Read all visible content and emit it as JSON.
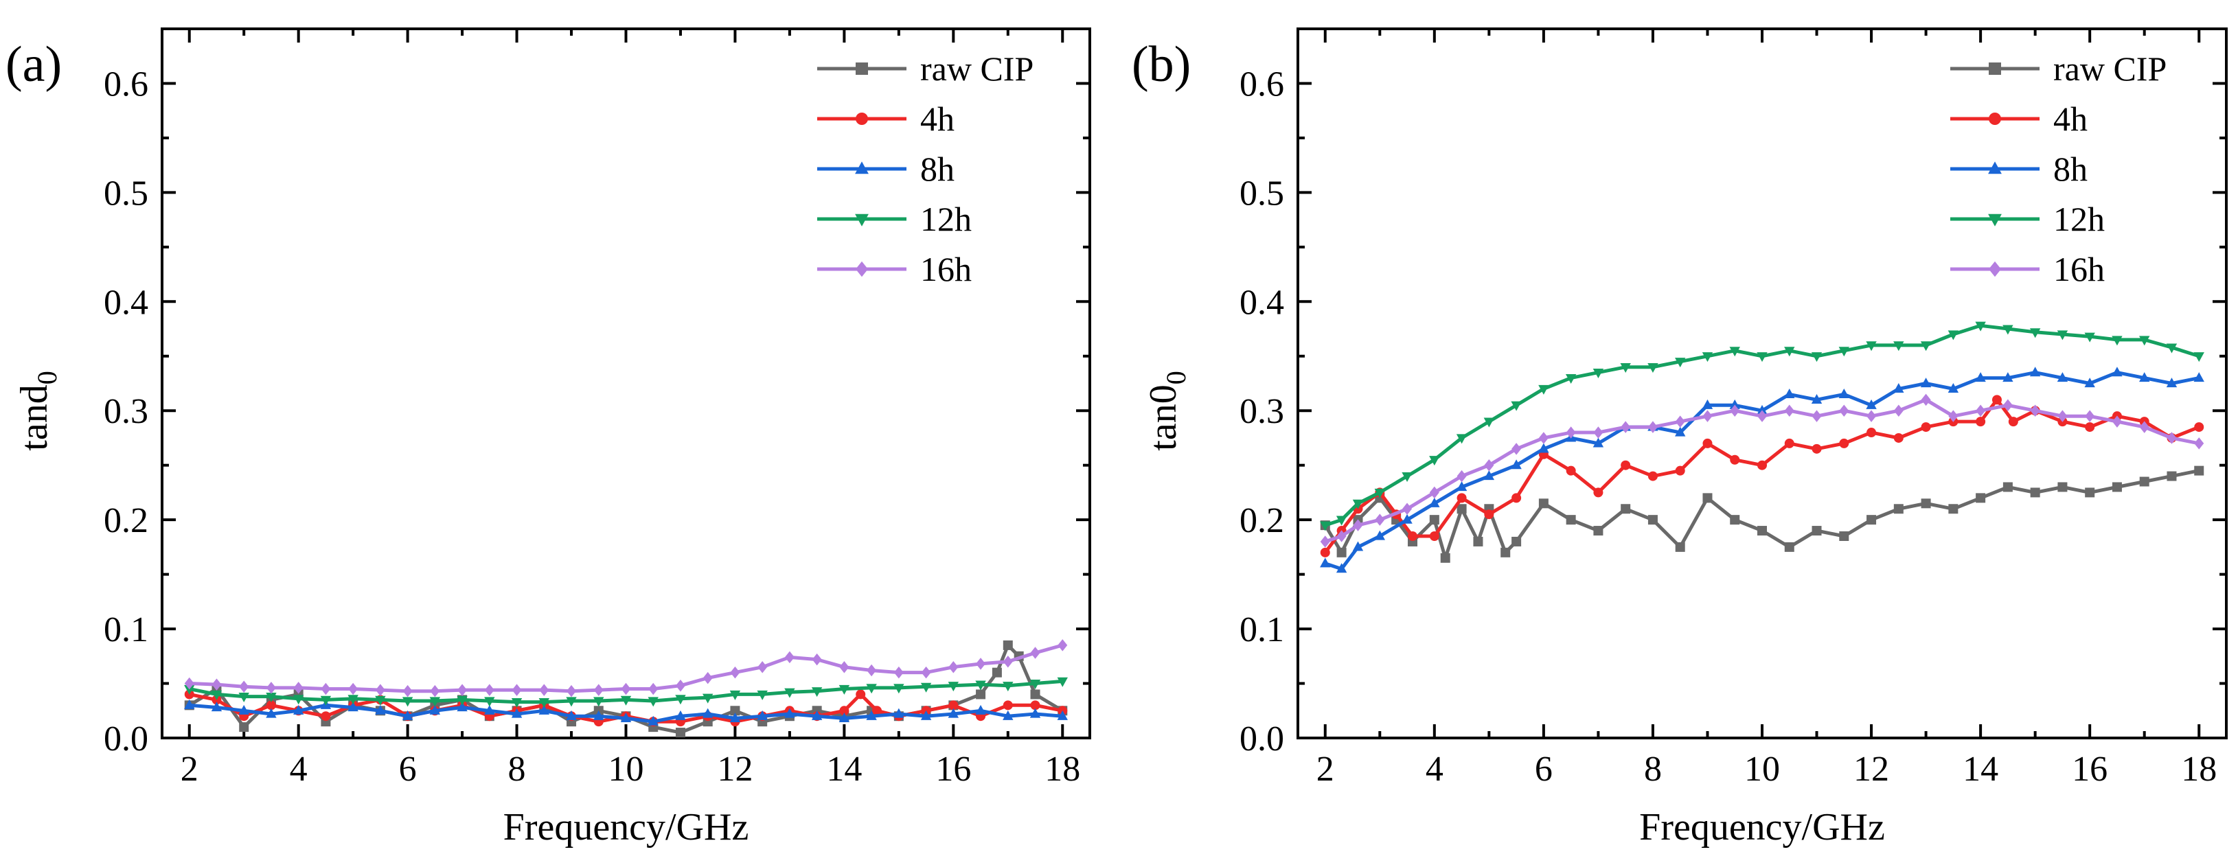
{
  "figure": {
    "kind": "two-panel loss-tangent plot"
  },
  "chart_data": [
    {
      "type": "line",
      "panel_label": "(a)",
      "title": "",
      "xlabel": "Frequency/GHz",
      "ylabel": "tand",
      "ylabel_sub": "0",
      "xlim": [
        1.5,
        18.5
      ],
      "ylim": [
        0.0,
        0.65
      ],
      "xticks": [
        2,
        4,
        6,
        8,
        10,
        12,
        14,
        16,
        18
      ],
      "xtick_labels": [
        "2",
        "4",
        "6",
        "8",
        "10",
        "12",
        "14",
        "16",
        "18"
      ],
      "yticks": [
        0.0,
        0.1,
        0.2,
        0.3,
        0.4,
        0.5,
        0.6
      ],
      "ytick_labels": [
        "0.0",
        "0.1",
        "0.2",
        "0.3",
        "0.4",
        "0.5",
        "0.6"
      ],
      "legend_position": "top-right",
      "series": [
        {
          "name": "raw CIP",
          "color": "#696969",
          "marker": "square",
          "x": [
            2,
            2.5,
            3,
            3.5,
            4,
            4.5,
            5,
            5.5,
            6,
            6.5,
            7,
            7.5,
            8,
            8.5,
            9,
            9.5,
            10,
            10.5,
            11,
            11.5,
            12,
            12.5,
            13,
            13.5,
            14,
            14.5,
            15,
            15.5,
            16,
            16.5,
            16.8,
            17,
            17.2,
            17.5,
            18
          ],
          "y": [
            0.03,
            0.045,
            0.01,
            0.035,
            0.04,
            0.015,
            0.03,
            0.025,
            0.02,
            0.03,
            0.035,
            0.02,
            0.025,
            0.03,
            0.015,
            0.025,
            0.02,
            0.01,
            0.005,
            0.015,
            0.025,
            0.015,
            0.02,
            0.025,
            0.02,
            0.025,
            0.02,
            0.025,
            0.03,
            0.04,
            0.06,
            0.085,
            0.075,
            0.04,
            0.025
          ]
        },
        {
          "name": "4h",
          "color": "#ee2828",
          "marker": "circle",
          "x": [
            2,
            2.5,
            3,
            3.5,
            4,
            4.5,
            5,
            5.5,
            6,
            6.5,
            7,
            7.5,
            8,
            8.5,
            9,
            9.5,
            10,
            10.5,
            11,
            11.5,
            12,
            12.5,
            13,
            13.5,
            14,
            14.3,
            14.6,
            15,
            15.5,
            16,
            16.5,
            17,
            17.5,
            18
          ],
          "y": [
            0.04,
            0.035,
            0.02,
            0.03,
            0.025,
            0.02,
            0.03,
            0.035,
            0.02,
            0.025,
            0.03,
            0.02,
            0.025,
            0.03,
            0.02,
            0.015,
            0.02,
            0.015,
            0.015,
            0.02,
            0.015,
            0.02,
            0.025,
            0.02,
            0.025,
            0.04,
            0.025,
            0.02,
            0.025,
            0.03,
            0.02,
            0.03,
            0.03,
            0.025
          ]
        },
        {
          "name": "8h",
          "color": "#1a66d6",
          "marker": "triangle-up",
          "x": [
            2,
            2.5,
            3,
            3.5,
            4,
            4.5,
            5,
            5.5,
            6,
            6.5,
            7,
            7.5,
            8,
            8.5,
            9,
            9.5,
            10,
            10.5,
            11,
            11.5,
            12,
            12.5,
            13,
            13.5,
            14,
            14.5,
            15,
            15.5,
            16,
            16.5,
            17,
            17.5,
            18
          ],
          "y": [
            0.03,
            0.028,
            0.025,
            0.022,
            0.025,
            0.03,
            0.028,
            0.025,
            0.02,
            0.025,
            0.028,
            0.025,
            0.022,
            0.025,
            0.02,
            0.02,
            0.018,
            0.015,
            0.02,
            0.022,
            0.018,
            0.02,
            0.022,
            0.02,
            0.018,
            0.02,
            0.022,
            0.02,
            0.022,
            0.025,
            0.02,
            0.022,
            0.02
          ]
        },
        {
          "name": "12h",
          "color": "#15a060",
          "marker": "triangle-down",
          "x": [
            2,
            2.5,
            3,
            3.5,
            4,
            4.5,
            5,
            5.5,
            6,
            6.5,
            7,
            7.5,
            8,
            8.5,
            9,
            9.5,
            10,
            10.5,
            11,
            11.5,
            12,
            12.5,
            13,
            13.5,
            14,
            14.5,
            15,
            15.5,
            16,
            16.5,
            17,
            17.5,
            18
          ],
          "y": [
            0.045,
            0.04,
            0.038,
            0.038,
            0.036,
            0.035,
            0.036,
            0.035,
            0.034,
            0.034,
            0.035,
            0.034,
            0.033,
            0.033,
            0.034,
            0.034,
            0.035,
            0.034,
            0.036,
            0.037,
            0.04,
            0.04,
            0.042,
            0.043,
            0.045,
            0.046,
            0.046,
            0.047,
            0.048,
            0.049,
            0.048,
            0.05,
            0.052
          ]
        },
        {
          "name": "16h",
          "color": "#b57ee0",
          "marker": "diamond",
          "x": [
            2,
            2.5,
            3,
            3.5,
            4,
            4.5,
            5,
            5.5,
            6,
            6.5,
            7,
            7.5,
            8,
            8.5,
            9,
            9.5,
            10,
            10.5,
            11,
            11.5,
            12,
            12.5,
            13,
            13.5,
            14,
            14.5,
            15,
            15.5,
            16,
            16.5,
            17,
            17.5,
            18
          ],
          "y": [
            0.05,
            0.049,
            0.047,
            0.046,
            0.046,
            0.045,
            0.045,
            0.044,
            0.043,
            0.043,
            0.044,
            0.044,
            0.044,
            0.044,
            0.043,
            0.044,
            0.045,
            0.045,
            0.048,
            0.055,
            0.06,
            0.065,
            0.074,
            0.072,
            0.065,
            0.062,
            0.06,
            0.06,
            0.065,
            0.068,
            0.07,
            0.078,
            0.085
          ]
        }
      ]
    },
    {
      "type": "line",
      "panel_label": "(b)",
      "title": "",
      "xlabel": "Frequency/GHz",
      "ylabel": "tan0",
      "ylabel_sub": "0",
      "xlim": [
        1.5,
        18.5
      ],
      "ylim": [
        0.0,
        0.65
      ],
      "xticks": [
        2,
        4,
        6,
        8,
        10,
        12,
        14,
        16,
        18
      ],
      "xtick_labels": [
        "2",
        "4",
        "6",
        "8",
        "10",
        "12",
        "14",
        "16",
        "18"
      ],
      "yticks": [
        0.0,
        0.1,
        0.2,
        0.3,
        0.4,
        0.5,
        0.6
      ],
      "ytick_labels": [
        "0.0",
        "0.1",
        "0.2",
        "0.3",
        "0.4",
        "0.5",
        "0.6"
      ],
      "legend_position": "top-right",
      "series": [
        {
          "name": "raw CIP",
          "color": "#696969",
          "marker": "square",
          "x": [
            2,
            2.3,
            2.6,
            3,
            3.3,
            3.6,
            4,
            4.2,
            4.5,
            4.8,
            5,
            5.3,
            5.5,
            6,
            6.5,
            7,
            7.5,
            8,
            8.5,
            9,
            9.5,
            10,
            10.5,
            11,
            11.5,
            12,
            12.5,
            13,
            13.5,
            14,
            14.5,
            15,
            15.5,
            16,
            16.5,
            17,
            17.5,
            18
          ],
          "y": [
            0.195,
            0.17,
            0.2,
            0.22,
            0.2,
            0.18,
            0.2,
            0.165,
            0.21,
            0.18,
            0.21,
            0.17,
            0.18,
            0.215,
            0.2,
            0.19,
            0.21,
            0.2,
            0.175,
            0.22,
            0.2,
            0.19,
            0.175,
            0.19,
            0.185,
            0.2,
            0.21,
            0.215,
            0.21,
            0.22,
            0.23,
            0.225,
            0.23,
            0.225,
            0.23,
            0.235,
            0.24,
            0.245
          ]
        },
        {
          "name": "4h",
          "color": "#ee2828",
          "marker": "circle",
          "x": [
            2,
            2.3,
            2.6,
            3,
            3.3,
            3.6,
            4,
            4.5,
            5,
            5.5,
            6,
            6.5,
            7,
            7.5,
            8,
            8.5,
            9,
            9.5,
            10,
            10.5,
            11,
            11.5,
            12,
            12.5,
            13,
            13.5,
            14,
            14.3,
            14.6,
            15,
            15.5,
            16,
            16.5,
            17,
            17.5,
            18
          ],
          "y": [
            0.17,
            0.19,
            0.21,
            0.225,
            0.205,
            0.185,
            0.185,
            0.22,
            0.205,
            0.22,
            0.26,
            0.245,
            0.225,
            0.25,
            0.24,
            0.245,
            0.27,
            0.255,
            0.25,
            0.27,
            0.265,
            0.27,
            0.28,
            0.275,
            0.285,
            0.29,
            0.29,
            0.31,
            0.29,
            0.3,
            0.29,
            0.285,
            0.295,
            0.29,
            0.275,
            0.285
          ]
        },
        {
          "name": "8h",
          "color": "#1a66d6",
          "marker": "triangle-up",
          "x": [
            2,
            2.3,
            2.6,
            3,
            3.5,
            4,
            4.5,
            5,
            5.5,
            6,
            6.5,
            7,
            7.5,
            8,
            8.5,
            9,
            9.5,
            10,
            10.5,
            11,
            11.5,
            12,
            12.5,
            13,
            13.5,
            14,
            14.5,
            15,
            15.5,
            16,
            16.5,
            17,
            17.5,
            18
          ],
          "y": [
            0.16,
            0.155,
            0.175,
            0.185,
            0.2,
            0.215,
            0.23,
            0.24,
            0.25,
            0.265,
            0.275,
            0.27,
            0.285,
            0.285,
            0.28,
            0.305,
            0.305,
            0.3,
            0.315,
            0.31,
            0.315,
            0.305,
            0.32,
            0.325,
            0.32,
            0.33,
            0.33,
            0.335,
            0.33,
            0.325,
            0.335,
            0.33,
            0.325,
            0.33
          ]
        },
        {
          "name": "12h",
          "color": "#15a060",
          "marker": "triangle-down",
          "x": [
            2,
            2.3,
            2.6,
            3,
            3.5,
            4,
            4.5,
            5,
            5.5,
            6,
            6.5,
            7,
            7.5,
            8,
            8.5,
            9,
            9.5,
            10,
            10.5,
            11,
            11.5,
            12,
            12.5,
            13,
            13.5,
            14,
            14.5,
            15,
            15.5,
            16,
            16.5,
            17,
            17.5,
            18
          ],
          "y": [
            0.195,
            0.2,
            0.215,
            0.225,
            0.24,
            0.255,
            0.275,
            0.29,
            0.305,
            0.32,
            0.33,
            0.335,
            0.34,
            0.34,
            0.345,
            0.35,
            0.355,
            0.35,
            0.355,
            0.35,
            0.355,
            0.36,
            0.36,
            0.36,
            0.37,
            0.378,
            0.375,
            0.372,
            0.37,
            0.368,
            0.365,
            0.365,
            0.358,
            0.35
          ]
        },
        {
          "name": "16h",
          "color": "#b57ee0",
          "marker": "diamond",
          "x": [
            2,
            2.3,
            2.6,
            3,
            3.5,
            4,
            4.5,
            5,
            5.5,
            6,
            6.5,
            7,
            7.5,
            8,
            8.5,
            9,
            9.5,
            10,
            10.5,
            11,
            11.5,
            12,
            12.5,
            13,
            13.5,
            14,
            14.5,
            15,
            15.5,
            16,
            16.5,
            17,
            17.5,
            18
          ],
          "y": [
            0.18,
            0.185,
            0.195,
            0.2,
            0.21,
            0.225,
            0.24,
            0.25,
            0.265,
            0.275,
            0.28,
            0.28,
            0.285,
            0.285,
            0.29,
            0.295,
            0.3,
            0.295,
            0.3,
            0.295,
            0.3,
            0.295,
            0.3,
            0.31,
            0.295,
            0.3,
            0.305,
            0.3,
            0.295,
            0.295,
            0.29,
            0.285,
            0.275,
            0.27
          ]
        }
      ]
    }
  ]
}
